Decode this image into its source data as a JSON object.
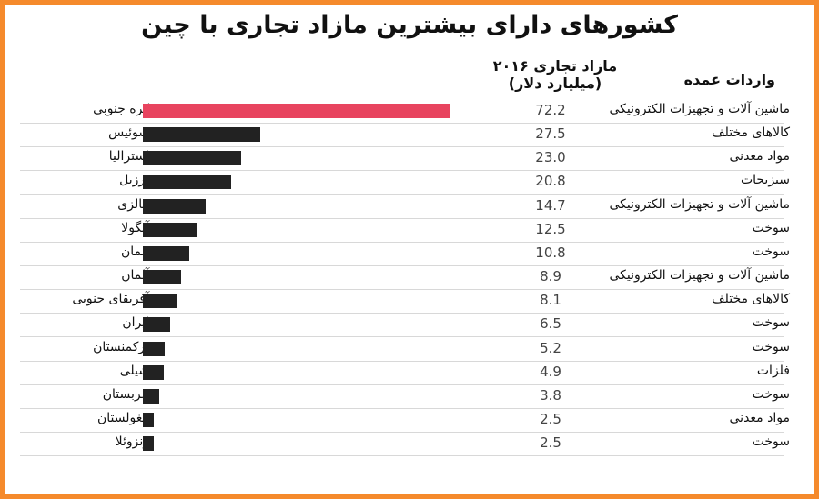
{
  "chart_data": {
    "type": "bar",
    "title": "کشورهای دارای بیشترین مازاد تجاری با چین",
    "value_header": "مازاد تجاری ۲۰۱۶",
    "value_unit": "(میلیارد دلار)",
    "imports_header": "واردات عمده",
    "highlight_color": "#e8445f",
    "bar_color": "#222222",
    "border_color": "#f58a2c",
    "rows": [
      {
        "country": "کره جنوبی",
        "value": 72.2,
        "imports": "ماشین آلات و تجهیزات الکترونیکی"
      },
      {
        "country": "سوئیس",
        "value": 27.5,
        "imports": "کالاهای مختلف"
      },
      {
        "country": "استرالیا",
        "value": 23.0,
        "imports": "مواد معدنی"
      },
      {
        "country": "برزیل",
        "value": 20.8,
        "imports": "سبزیجات"
      },
      {
        "country": "مالزی",
        "value": 14.7,
        "imports": "ماشین آلات و تجهیزات الکترونیکی"
      },
      {
        "country": "آنگولا",
        "value": 12.5,
        "imports": "سوخت"
      },
      {
        "country": "عمان",
        "value": 10.8,
        "imports": "سوخت"
      },
      {
        "country": "آلمان",
        "value": 8.9,
        "imports": "ماشین آلات و تجهیزات الکترونیکی"
      },
      {
        "country": "آفریقای جنوبی",
        "value": 8.1,
        "imports": "کالاهای مختلف"
      },
      {
        "country": "ایران",
        "value": 6.5,
        "imports": "سوخت"
      },
      {
        "country": "ترکمنستان",
        "value": 5.2,
        "imports": "سوخت"
      },
      {
        "country": "شیلی",
        "value": 4.9,
        "imports": "فلزات"
      },
      {
        "country": "عربستان",
        "value": 3.8,
        "imports": "سوخت"
      },
      {
        "country": "مغولستان",
        "value": 2.5,
        "imports": "مواد معدنی"
      },
      {
        "country": "ونزوئلا",
        "value": 2.5,
        "imports": "سوخت"
      }
    ]
  }
}
